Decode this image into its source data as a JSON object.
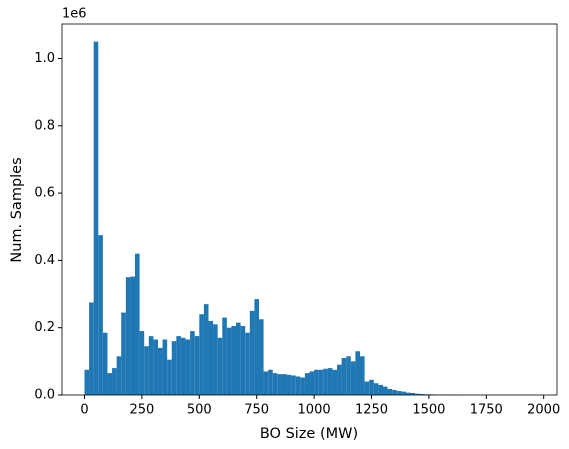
{
  "chart_data": {
    "type": "histogram",
    "xlabel": "BO Size (MW)",
    "ylabel": "Num. Samples",
    "y_offset_text": "1e6",
    "color": "#1f77b4",
    "bins": [
      0,
      20,
      40,
      60,
      80,
      100,
      120,
      140,
      160,
      180,
      200,
      220,
      240,
      260,
      280,
      300,
      320,
      340,
      360,
      380,
      400,
      420,
      440,
      460,
      480,
      500,
      520,
      540,
      560,
      580,
      600,
      620,
      640,
      660,
      680,
      700,
      720,
      740,
      760,
      780,
      800,
      820,
      840,
      860,
      880,
      900,
      920,
      940,
      960,
      980,
      1000,
      1020,
      1040,
      1060,
      1080,
      1100,
      1120,
      1140,
      1160,
      1180,
      1200,
      1220,
      1240,
      1260,
      1280,
      1300,
      1320,
      1340,
      1360,
      1380,
      1400,
      1420,
      1440,
      1460,
      1480,
      1500,
      1520,
      1540,
      1560,
      1580,
      1600,
      1620,
      1640,
      1660,
      1680,
      1700,
      1720,
      1740,
      1760,
      1780,
      1800,
      1820,
      1840,
      1860,
      1880,
      1900,
      1920,
      1940,
      1960
    ],
    "values": [
      75000,
      275000,
      1050000,
      475000,
      185000,
      65000,
      80000,
      115000,
      245000,
      350000,
      352000,
      420000,
      190000,
      145000,
      175000,
      165000,
      140000,
      165000,
      105000,
      160000,
      175000,
      170000,
      165000,
      190000,
      175000,
      240000,
      270000,
      220000,
      210000,
      170000,
      230000,
      200000,
      205000,
      215000,
      205000,
      185000,
      250000,
      285000,
      225000,
      70000,
      75000,
      65000,
      62000,
      62000,
      60000,
      58000,
      55000,
      52000,
      65000,
      70000,
      75000,
      75000,
      78000,
      80000,
      75000,
      90000,
      110000,
      115000,
      100000,
      130000,
      115000,
      40000,
      45000,
      35000,
      30000,
      25000,
      18000,
      15000,
      12000,
      10000,
      7000,
      6000,
      4000,
      3000,
      2000,
      2000,
      1500,
      1200,
      1000,
      800,
      700,
      600,
      500,
      400,
      300,
      300,
      200,
      200,
      150,
      100,
      100,
      80,
      60,
      50,
      40,
      30,
      20,
      10
    ],
    "xlim": [
      -98,
      2058
    ],
    "xticks": [
      0,
      250,
      500,
      750,
      1000,
      1250,
      1500,
      1750,
      2000
    ],
    "ylim": [
      0,
      1102500
    ],
    "yticks": [
      {
        "value": 0,
        "label": "0.0"
      },
      {
        "value": 200000,
        "label": "0.2"
      },
      {
        "value": 400000,
        "label": "0.4"
      },
      {
        "value": 600000,
        "label": "0.6"
      },
      {
        "value": 800000,
        "label": "0.8"
      },
      {
        "value": 1000000,
        "label": "1.0"
      }
    ]
  }
}
